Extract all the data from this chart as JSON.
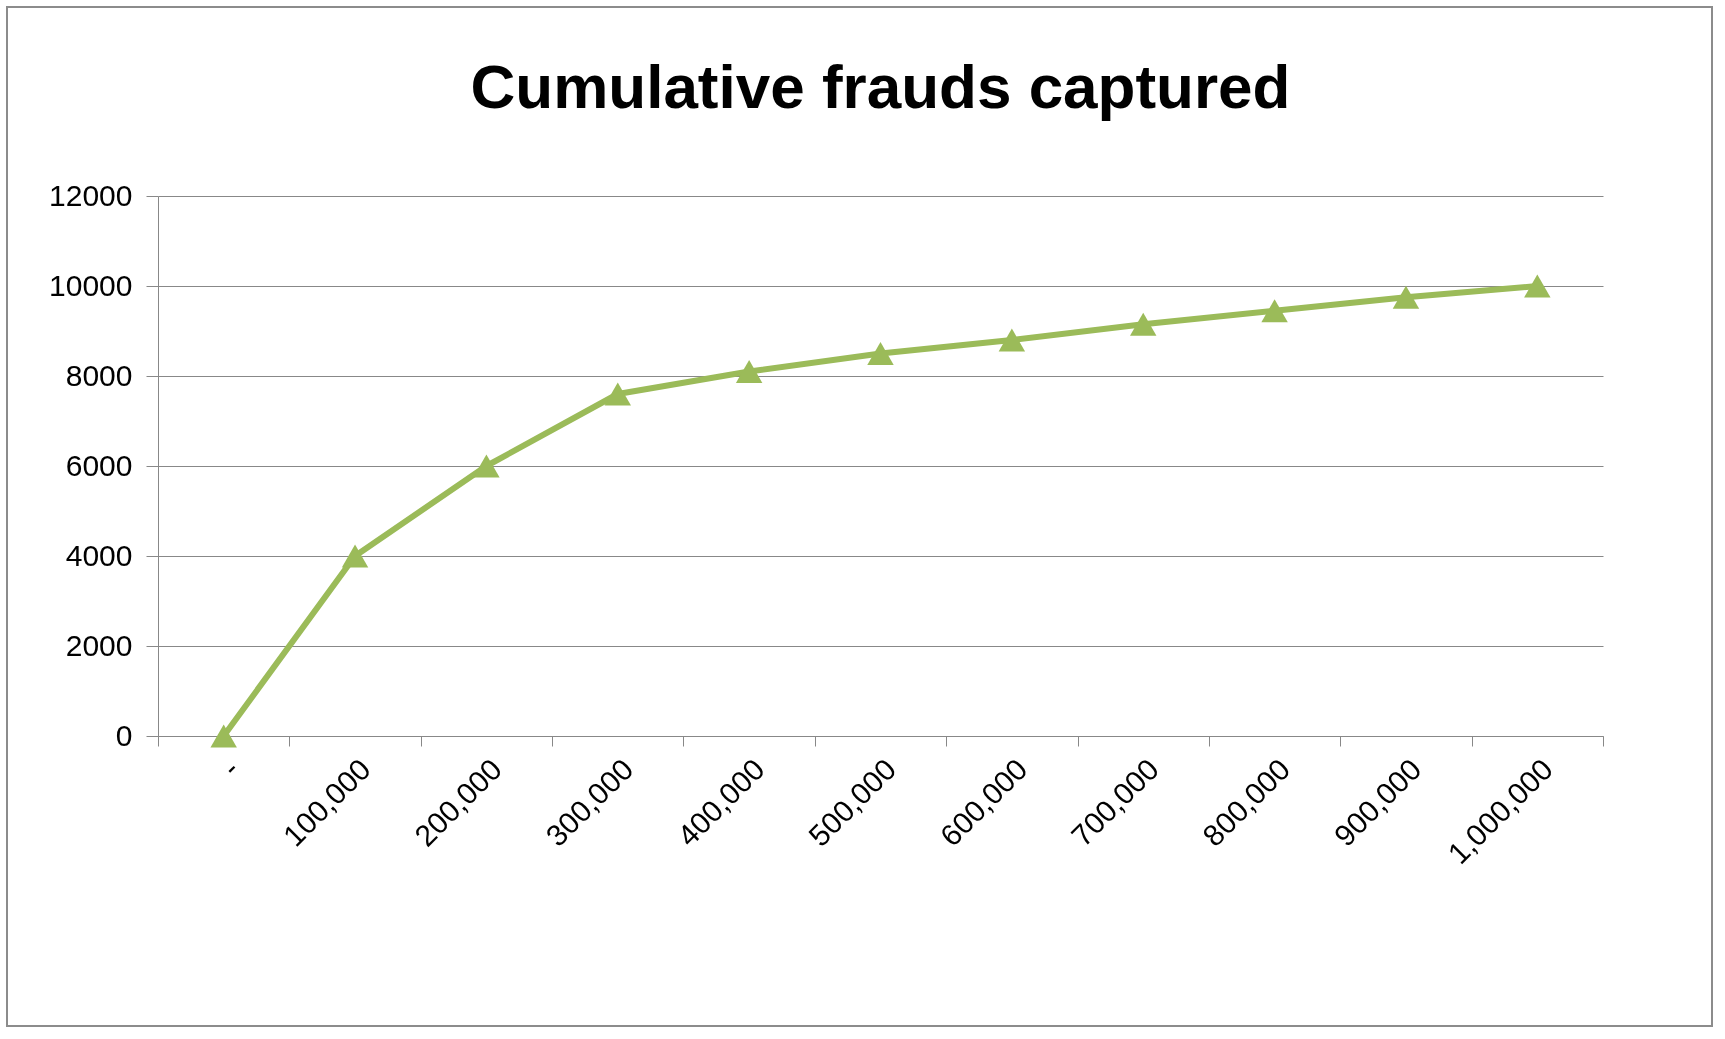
{
  "chart_data": {
    "type": "line",
    "title": "Cumulative frauds captured",
    "categories": [
      "-",
      "100,000",
      "200,000",
      "300,000",
      "400,000",
      "500,000",
      "600,000",
      "700,000",
      "800,000",
      "900,000",
      "1,000,000"
    ],
    "series": [
      {
        "color": "#9bbb59",
        "values": [
          0,
          4000,
          6000,
          7600,
          8100,
          8500,
          8800,
          9150,
          9450,
          9750,
          10000
        ]
      }
    ],
    "ylim": [
      0,
      12000
    ],
    "yticks": [
      0,
      2000,
      4000,
      6000,
      8000,
      10000,
      12000
    ],
    "grid": "y",
    "marker": "triangle",
    "line_style": "solid",
    "legend": false
  }
}
